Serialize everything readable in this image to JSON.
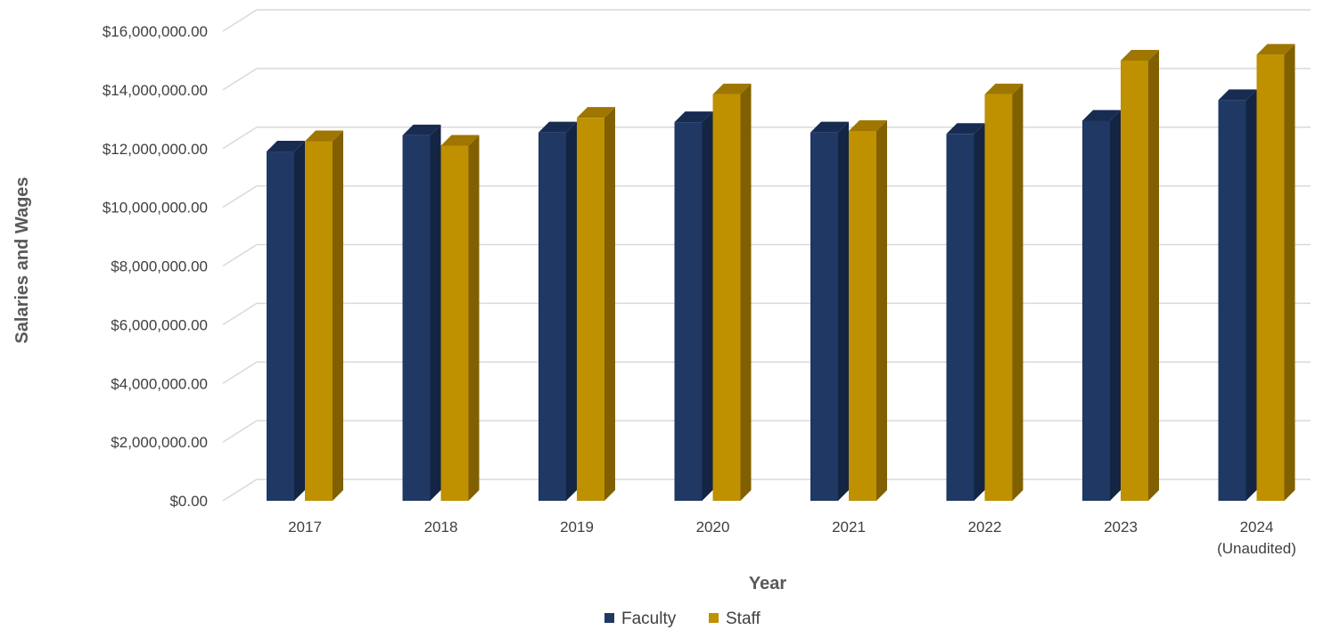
{
  "chart_data": {
    "type": "bar",
    "title": "",
    "xlabel": "Year",
    "ylabel": "Salaries and Wages",
    "categories": [
      "2017",
      "2018",
      "2019",
      "2020",
      "2021",
      "2022",
      "2023",
      "2024 (Unaudited)"
    ],
    "category_lines": [
      [
        "2017"
      ],
      [
        "2018"
      ],
      [
        "2019"
      ],
      [
        "2020"
      ],
      [
        "2021"
      ],
      [
        "2022"
      ],
      [
        "2023"
      ],
      [
        "2024",
        "(Unaudited)"
      ]
    ],
    "series": [
      {
        "name": "Faculty",
        "color": "#1f3864",
        "values": [
          11900000,
          12450000,
          12550000,
          12900000,
          12550000,
          12500000,
          12950000,
          13650000
        ]
      },
      {
        "name": "Staff",
        "color": "#bf9000",
        "values": [
          12250000,
          12100000,
          13050000,
          13850000,
          12600000,
          13850000,
          15000000,
          15200000
        ]
      }
    ],
    "ylim": [
      0,
      16000000
    ],
    "y_ticks": [
      {
        "value": 0,
        "label": "$0.00"
      },
      {
        "value": 2000000,
        "label": "$2,000,000.00"
      },
      {
        "value": 4000000,
        "label": "$4,000,000.00"
      },
      {
        "value": 6000000,
        "label": "$6,000,000.00"
      },
      {
        "value": 8000000,
        "label": "$8,000,000.00"
      },
      {
        "value": 10000000,
        "label": "$10,000,000.00"
      },
      {
        "value": 12000000,
        "label": "$12,000,000.00"
      },
      {
        "value": 14000000,
        "label": "$14,000,000.00"
      },
      {
        "value": 16000000,
        "label": "$16,000,000.00"
      }
    ],
    "grid": true,
    "legend_position": "bottom",
    "style": "3d-column"
  }
}
